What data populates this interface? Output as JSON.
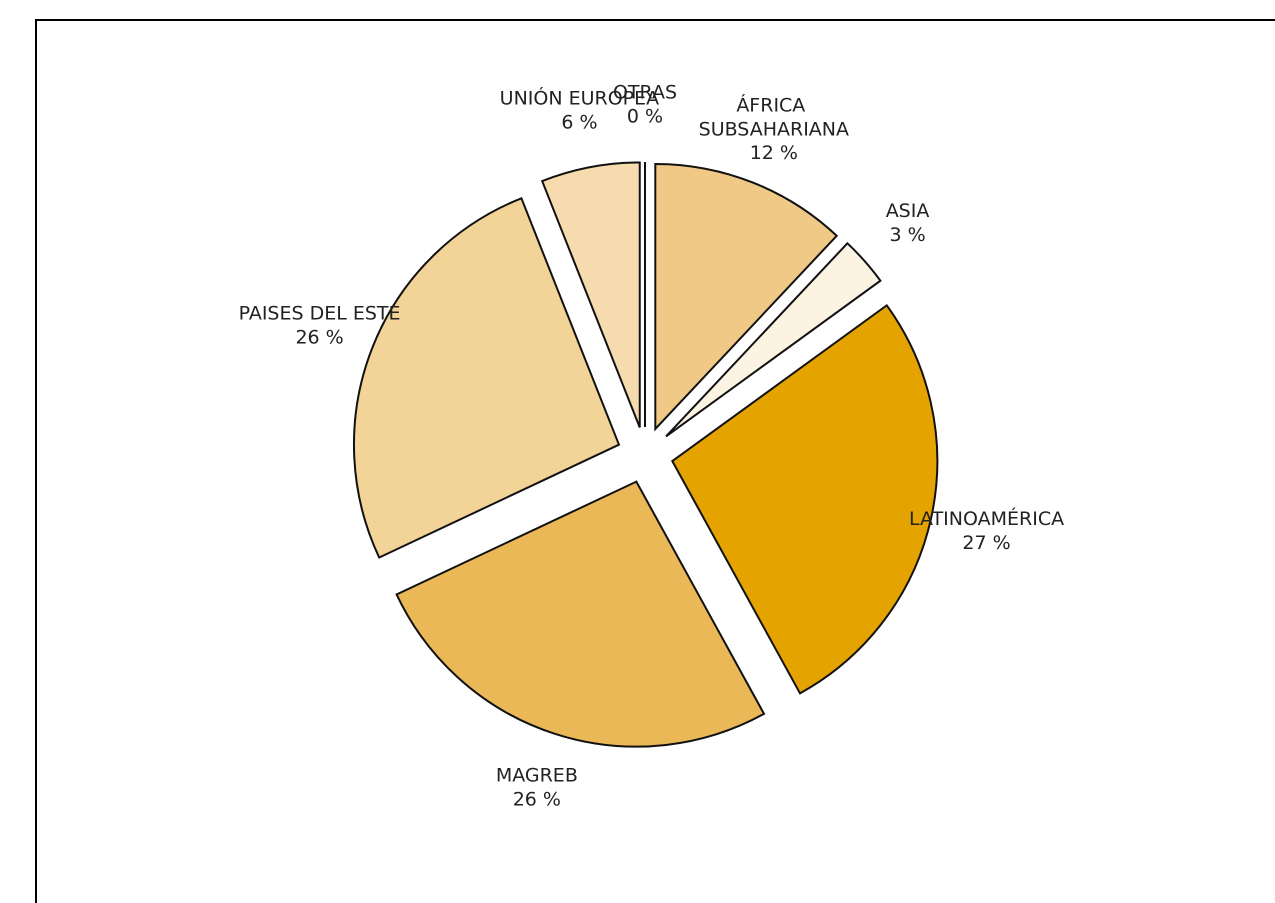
{
  "chart_data": {
    "type": "pie",
    "categories": [
      "ÁFRICA SUBSAHARIANA",
      "ASIA",
      "LATINOAMÉRICA",
      "MAGREB",
      "PAISES DEL ESTE",
      "UNIÓN EUROPEA",
      "OTRAS"
    ],
    "values": [
      12,
      3,
      27,
      26,
      26,
      6,
      0
    ],
    "value_labels": [
      "12 %",
      "3 %",
      "27 %",
      "26 %",
      "26 %",
      "6 %",
      "0 %"
    ],
    "colors": [
      "#f0c987",
      "#fdf3e3",
      "#e5a300",
      "#ebb857",
      "#f2d398",
      "#f5dbad",
      "#ffffff"
    ]
  }
}
